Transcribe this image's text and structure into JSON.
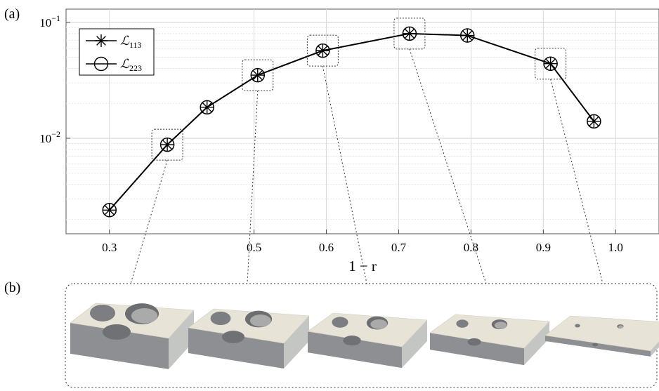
{
  "figure": {
    "panel_a_label": "(a)",
    "panel_b_label": "(b)"
  },
  "chart_data": {
    "type": "line",
    "xlabel": "1 − r",
    "ylabel": "",
    "title": "",
    "xscale": "linear",
    "yscale": "log",
    "xlim": [
      0.24,
      1.06
    ],
    "ylim": [
      0.0015,
      0.13
    ],
    "x_ticks": [
      0.3,
      0.5,
      0.6,
      0.7,
      0.8,
      0.9,
      1.0
    ],
    "x_tick_labels": [
      "0.3",
      "0.5",
      "0.6",
      "0.7",
      "0.8",
      "0.9",
      "1.0"
    ],
    "y_ticks": [
      0.01,
      0.1
    ],
    "y_tick_labels": [
      {
        "base": "10",
        "exp": "−2"
      },
      {
        "base": "10",
        "exp": "−1"
      }
    ],
    "grid": true,
    "legend_position": "top-left",
    "legend": [
      {
        "base": "ℒ",
        "sub": "113",
        "marker": "asterisk"
      },
      {
        "base": "ℒ",
        "sub": "223",
        "marker": "circle"
      }
    ],
    "series": [
      {
        "name": "ℒ113",
        "marker": "asterisk",
        "color": "#000000",
        "x": [
          0.3,
          0.38,
          0.435,
          0.505,
          0.595,
          0.715,
          0.795,
          0.91,
          0.97
        ],
        "y": [
          0.0024,
          0.0088,
          0.0185,
          0.035,
          0.057,
          0.08,
          0.077,
          0.044,
          0.014
        ]
      },
      {
        "name": "ℒ223",
        "marker": "circle",
        "color": "#000000",
        "x": [
          0.3,
          0.38,
          0.435,
          0.505,
          0.595,
          0.715,
          0.795,
          0.91,
          0.97
        ],
        "y": [
          0.0024,
          0.0088,
          0.0185,
          0.035,
          0.057,
          0.08,
          0.077,
          0.044,
          0.014
        ]
      }
    ],
    "highlighted_points": [
      1,
      3,
      4,
      5,
      7
    ]
  },
  "shapes": [
    {
      "hole_scale": 1.0
    },
    {
      "hole_scale": 0.78
    },
    {
      "hole_scale": 0.6
    },
    {
      "hole_scale": 0.42
    },
    {
      "hole_scale": 0.12
    }
  ]
}
